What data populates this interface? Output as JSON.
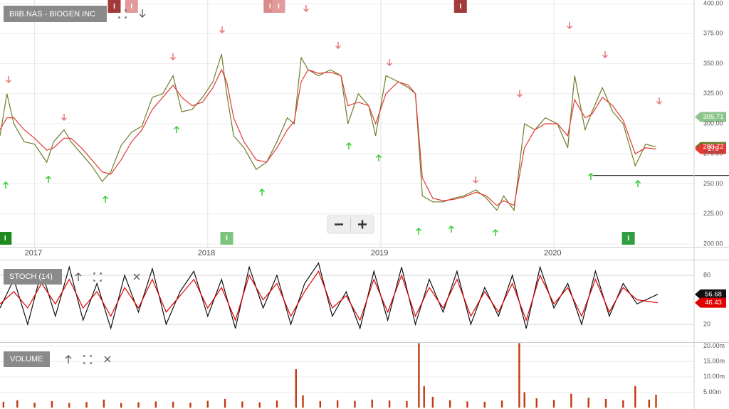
{
  "chart_data": [
    {
      "type": "line",
      "title": "BIIB.NAS - BIOGEN INC",
      "x": [
        2016.8,
        2016.84,
        2016.88,
        2016.94,
        2017.0,
        2017.07,
        2017.11,
        2017.17,
        2017.21,
        2017.27,
        2017.33,
        2017.39,
        2017.44,
        2017.5,
        2017.56,
        2017.62,
        2017.68,
        2017.74,
        2017.8,
        2017.85,
        2017.91,
        2017.97,
        2018.03,
        2018.08,
        2018.11,
        2018.15,
        2018.21,
        2018.28,
        2018.34,
        2018.4,
        2018.46,
        2018.5,
        2018.54,
        2018.58,
        2018.64,
        2018.71,
        2018.77,
        2018.81,
        2018.87,
        2018.93,
        2018.97,
        2019.03,
        2019.1,
        2019.16,
        2019.2,
        2019.24,
        2019.3,
        2019.36,
        2019.42,
        2019.48,
        2019.55,
        2019.61,
        2019.67,
        2019.71,
        2019.77,
        2019.83,
        2019.89,
        2019.95,
        2020.02,
        2020.08,
        2020.12,
        2020.18,
        2020.22,
        2020.28,
        2020.34,
        2020.4,
        2020.47,
        2020.53,
        2020.59
      ],
      "series": [
        {
          "color": "#6b7f2a",
          "values": [
            290,
            325,
            300,
            285,
            283,
            268,
            285,
            295,
            285,
            275,
            265,
            252,
            260,
            282,
            293,
            298,
            322,
            325,
            340,
            310,
            312,
            322,
            335,
            358,
            325,
            290,
            280,
            262,
            268,
            285,
            305,
            300,
            355,
            345,
            340,
            345,
            340,
            300,
            325,
            315,
            290,
            340,
            335,
            330,
            325,
            240,
            235,
            235,
            238,
            240,
            245,
            238,
            228,
            240,
            228,
            300,
            295,
            305,
            300,
            280,
            340,
            295,
            310,
            330,
            310,
            300,
            265,
            283,
            280.72
          ]
        },
        {
          "color": "#e53935",
          "values": [
            295,
            305,
            305,
            295,
            288,
            278,
            280,
            288,
            288,
            280,
            270,
            260,
            258,
            270,
            285,
            295,
            312,
            322,
            332,
            322,
            315,
            318,
            330,
            345,
            335,
            305,
            285,
            270,
            268,
            280,
            295,
            302,
            335,
            345,
            342,
            343,
            340,
            315,
            318,
            315,
            300,
            325,
            335,
            332,
            325,
            255,
            238,
            236,
            237,
            239,
            243,
            240,
            232,
            236,
            232,
            280,
            295,
            300,
            300,
            290,
            320,
            305,
            308,
            322,
            315,
            303,
            275,
            280,
            279
          ]
        }
      ],
      "tags": [
        {
          "value": 305.71,
          "color": "#8cc48c"
        }
      ],
      "hline": {
        "x": 2020.22,
        "value": 257,
        "color": "#333333"
      },
      "events": [
        {
          "x": 2017.46,
          "label": "I",
          "color": "#a33a3a",
          "position": "top"
        },
        {
          "x": 2017.56,
          "label": "I",
          "color": "#e39a9a",
          "position": "top"
        },
        {
          "x": 2018.36,
          "label": "I",
          "color": "#d98a8a",
          "position": "top"
        },
        {
          "x": 2018.41,
          "label": "I",
          "color": "#e39a9a",
          "position": "top"
        },
        {
          "x": 2019.46,
          "label": "I",
          "color": "#a33a3a",
          "position": "top"
        },
        {
          "x": 2016.83,
          "label": "I",
          "color": "#1e8a1e",
          "position": "bottom"
        },
        {
          "x": 2018.11,
          "label": "I",
          "color": "#7cc47c",
          "position": "bottom"
        },
        {
          "x": 2020.43,
          "label": "I",
          "color": "#2e9e3e",
          "position": "bottom"
        }
      ],
      "xlim": [
        2016.8,
        2020.81
      ],
      "xticks": [
        2017,
        2018,
        2019,
        2020
      ],
      "ylim": [
        197.6,
        403.0
      ],
      "yticks": [
        {
          "value": 200,
          "label": "200.00"
        },
        {
          "value": 225,
          "label": "225.00"
        },
        {
          "value": 250,
          "label": "250.00"
        },
        {
          "value": 275,
          "label": "275.00"
        },
        {
          "value": 300,
          "label": "300.00"
        },
        {
          "value": 325,
          "label": "325.00"
        },
        {
          "value": 350,
          "label": "350.00"
        },
        {
          "value": 375,
          "label": "375.00"
        },
        {
          "value": 400,
          "label": "400.00"
        }
      ],
      "grid": true
    },
    {
      "type": "line",
      "title": "STOCH (14)",
      "x": [
        2016.8,
        2016.88,
        2016.96,
        2017.04,
        2017.12,
        2017.2,
        2017.28,
        2017.36,
        2017.44,
        2017.52,
        2017.6,
        2017.68,
        2017.76,
        2017.84,
        2017.92,
        2018.0,
        2018.08,
        2018.16,
        2018.24,
        2018.32,
        2018.4,
        2018.48,
        2018.56,
        2018.64,
        2018.72,
        2018.8,
        2018.88,
        2018.96,
        2019.04,
        2019.12,
        2019.2,
        2019.28,
        2019.36,
        2019.44,
        2019.52,
        2019.6,
        2019.68,
        2019.76,
        2019.84,
        2019.92,
        2020.0,
        2020.08,
        2020.16,
        2020.24,
        2020.32,
        2020.4,
        2020.48,
        2020.6
      ],
      "series": [
        {
          "color": "#111111",
          "values": [
            40,
            75,
            20,
            85,
            30,
            90,
            25,
            70,
            15,
            80,
            35,
            88,
            20,
            60,
            85,
            30,
            75,
            15,
            90,
            40,
            80,
            20,
            70,
            95,
            30,
            60,
            15,
            85,
            25,
            90,
            20,
            75,
            35,
            85,
            20,
            65,
            30,
            80,
            15,
            90,
            40,
            70,
            20,
            85,
            30,
            70,
            45,
            56.68
          ]
        },
        {
          "color": "#e00000",
          "values": [
            45,
            60,
            40,
            70,
            45,
            75,
            40,
            60,
            30,
            65,
            40,
            75,
            35,
            55,
            75,
            40,
            65,
            25,
            80,
            50,
            70,
            30,
            60,
            85,
            40,
            55,
            25,
            75,
            35,
            80,
            30,
            65,
            40,
            75,
            30,
            60,
            35,
            70,
            25,
            80,
            45,
            65,
            30,
            75,
            35,
            65,
            50,
            46.43
          ]
        }
      ],
      "xlim": [
        2016.8,
        2020.81
      ],
      "ylim": [
        -0.9,
        98.3
      ],
      "yticks": [
        20,
        80
      ],
      "grid": true
    },
    {
      "type": "bar",
      "title": "VOLUME",
      "color": "#c0390f",
      "x": [
        2016.82,
        2016.9,
        2017.0,
        2017.1,
        2017.2,
        2017.3,
        2017.4,
        2017.5,
        2017.6,
        2017.7,
        2017.8,
        2017.9,
        2018.0,
        2018.1,
        2018.2,
        2018.3,
        2018.4,
        2018.51,
        2018.55,
        2018.65,
        2018.75,
        2018.85,
        2018.95,
        2019.05,
        2019.15,
        2019.22,
        2019.25,
        2019.3,
        2019.4,
        2019.5,
        2019.6,
        2019.7,
        2019.8,
        2019.83,
        2019.9,
        2020.0,
        2020.1,
        2020.2,
        2020.3,
        2020.4,
        2020.47,
        2020.55,
        2020.59
      ],
      "values": [
        1900000,
        2400000,
        1600000,
        2100000,
        1500000,
        1800000,
        2600000,
        1500000,
        1700000,
        2000000,
        1900000,
        1600000,
        2200000,
        2800000,
        2000000,
        1700000,
        2300000,
        12500000,
        4000000,
        2100000,
        2400000,
        2200000,
        2600000,
        2300000,
        2100000,
        21000000,
        7000000,
        3500000,
        2400000,
        2000000,
        1900000,
        2300000,
        21000000,
        5000000,
        3000000,
        2500000,
        4500000,
        3200000,
        2800000,
        2400000,
        7000000,
        2600000,
        4200000
      ],
      "xlim": [
        2016.8,
        2020.81
      ],
      "ylim": [
        0,
        21100000
      ],
      "yticks": [
        {
          "value": 5000000,
          "label": "5.00m"
        },
        {
          "value": 10000000,
          "label": "10.00m"
        },
        {
          "value": 15000000,
          "label": "15.00m"
        },
        {
          "value": 20000000,
          "label": "20.00m"
        }
      ],
      "grid": true
    }
  ]
}
